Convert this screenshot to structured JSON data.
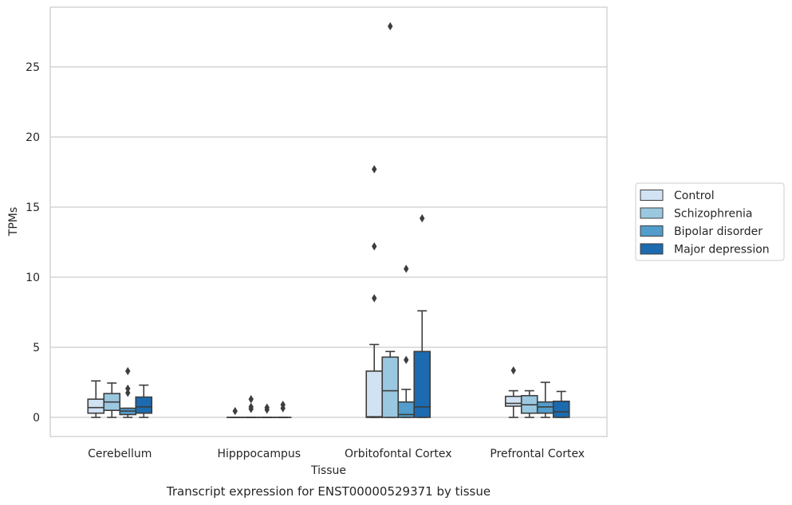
{
  "chart_data": {
    "type": "boxplot",
    "title": "Transcript expression for ENST00000529371 by tissue",
    "xlabel": "Tissue",
    "ylabel": "TPMs",
    "ylim": [
      -1.3,
      29
    ],
    "yticks": [
      0,
      5,
      10,
      15,
      20,
      25
    ],
    "grid": "horizontal",
    "legend_position": "right",
    "categories": [
      "Cerebellum",
      "Hipppocampus",
      "Orbitofontal Cortex",
      "Prefrontal Cortex"
    ],
    "series": [
      {
        "name": "Control",
        "color": "#d1e3f3",
        "boxes": [
          {
            "whislo": 0,
            "q1": 0.3,
            "med": 0.7,
            "q3": 1.3,
            "whishi": 2.6,
            "fliers": []
          },
          {
            "whislo": 0,
            "q1": 0,
            "med": 0,
            "q3": 0,
            "whishi": 0,
            "fliers": [
              0.45
            ]
          },
          {
            "whislo": 0,
            "q1": 0,
            "med": 0.05,
            "q3": 3.3,
            "whishi": 5.2,
            "fliers": [
              8.5,
              12.2,
              17.7
            ]
          },
          {
            "whislo": 0,
            "q1": 0.8,
            "med": 1.0,
            "q3": 1.5,
            "whishi": 1.9,
            "fliers": [
              3.35
            ]
          }
        ]
      },
      {
        "name": "Schizophrenia",
        "color": "#9ac8e0",
        "boxes": [
          {
            "whislo": 0,
            "q1": 0.5,
            "med": 1.1,
            "q3": 1.7,
            "whishi": 2.45,
            "fliers": []
          },
          {
            "whislo": 0,
            "q1": 0,
            "med": 0,
            "q3": 0,
            "whishi": 0,
            "fliers": [
              0.6,
              0.75,
              1.3
            ]
          },
          {
            "whislo": 0,
            "q1": 0,
            "med": 1.9,
            "q3": 4.3,
            "whishi": 4.7,
            "fliers": [
              27.9
            ]
          },
          {
            "whislo": 0,
            "q1": 0.3,
            "med": 0.9,
            "q3": 1.55,
            "whishi": 1.9,
            "fliers": []
          }
        ]
      },
      {
        "name": "Bipolar disorder",
        "color": "#529dcc",
        "boxes": [
          {
            "whislo": 0,
            "q1": 0.2,
            "med": 0.45,
            "q3": 0.65,
            "whishi": 0.65,
            "fliers": [
              1.75,
              2.05,
              3.3
            ]
          },
          {
            "whislo": 0,
            "q1": 0,
            "med": 0,
            "q3": 0,
            "whishi": 0,
            "fliers": [
              0.55,
              0.7
            ]
          },
          {
            "whislo": 0,
            "q1": 0,
            "med": 0.2,
            "q3": 1.1,
            "whishi": 2.0,
            "fliers": [
              4.1,
              10.6
            ]
          },
          {
            "whislo": 0,
            "q1": 0.3,
            "med": 0.75,
            "q3": 1.1,
            "whishi": 2.5,
            "fliers": []
          }
        ]
      },
      {
        "name": "Major depression",
        "color": "#1c6aaf",
        "boxes": [
          {
            "whislo": 0,
            "q1": 0.3,
            "med": 0.75,
            "q3": 1.45,
            "whishi": 2.3,
            "fliers": []
          },
          {
            "whislo": 0,
            "q1": 0,
            "med": 0,
            "q3": 0,
            "whishi": 0,
            "fliers": [
              0.65,
              0.9
            ]
          },
          {
            "whislo": 0,
            "q1": 0,
            "med": 0.75,
            "q3": 4.7,
            "whishi": 7.6,
            "fliers": [
              14.2
            ]
          },
          {
            "whislo": 0,
            "q1": 0,
            "med": 0.4,
            "q3": 1.15,
            "whishi": 1.85,
            "fliers": []
          }
        ]
      }
    ]
  }
}
